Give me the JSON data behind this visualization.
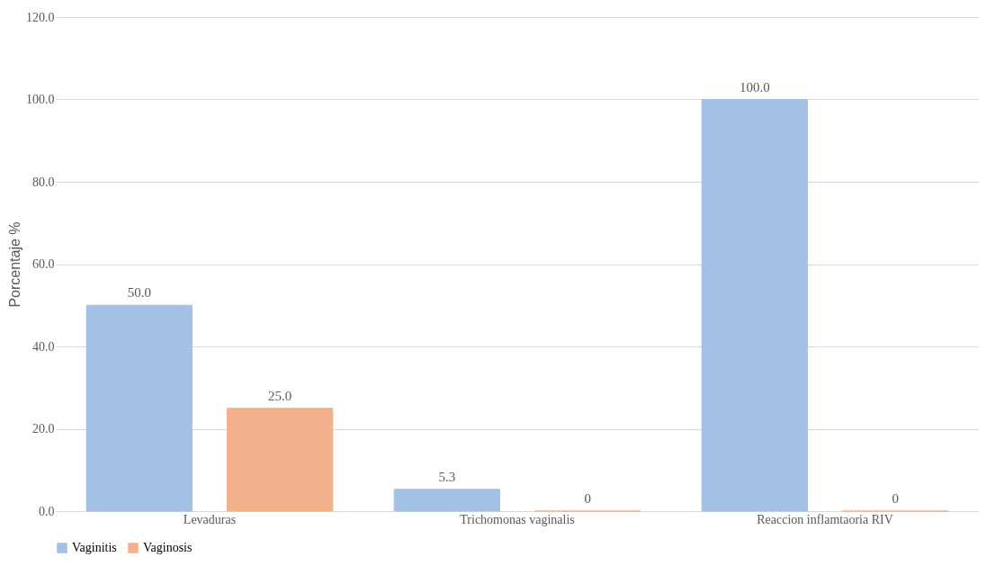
{
  "chart_data": {
    "type": "bar",
    "ylabel": "Porcentaje %",
    "categories": [
      "Levaduras",
      "Trichomonas vaginalis",
      "Reaccion inflamtaoria RIV"
    ],
    "series": [
      {
        "name": "Vaginitis",
        "color": "#a3c1e5",
        "values": [
          50.0,
          5.3,
          100.0
        ],
        "value_labels": [
          "50.0",
          "5.3",
          "100.0"
        ]
      },
      {
        "name": "Vaginosis",
        "color": "#f4b08a",
        "values": [
          25.0,
          0,
          0
        ],
        "value_labels": [
          "25.0",
          "0",
          "0"
        ]
      }
    ],
    "ylim": [
      0,
      120
    ],
    "yticks": [
      {
        "value": 0,
        "label": "0.0"
      },
      {
        "value": 20,
        "label": "20.0"
      },
      {
        "value": 40,
        "label": "40.0"
      },
      {
        "value": 60,
        "label": "60.0"
      },
      {
        "value": 80,
        "label": "80.0"
      },
      {
        "value": 100,
        "label": "100.0"
      },
      {
        "value": 120,
        "label": "120.0"
      }
    ],
    "grid": "y",
    "legend": "bottom"
  }
}
